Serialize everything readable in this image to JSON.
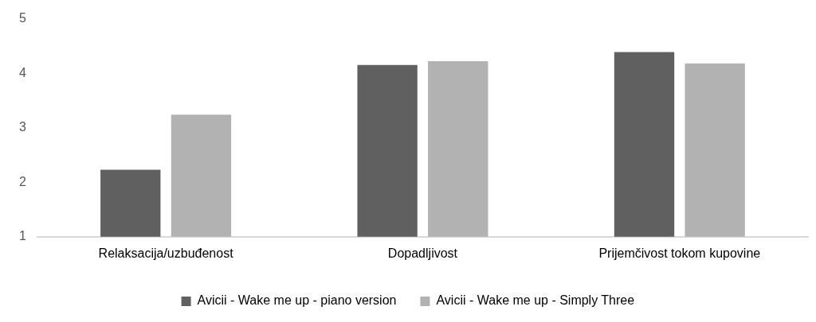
{
  "chart_data": {
    "type": "bar",
    "categories": [
      "Relaksacija/uzbuđenost",
      "Dopadljivost",
      "Prijemčivost tokom kupovine"
    ],
    "series": [
      {
        "name": "Avicii - Wake me up - piano version",
        "color": "#606060",
        "values": [
          2.23,
          4.15,
          4.39
        ]
      },
      {
        "name": "Avicii - Wake me up - Simply Three",
        "color": "#b2b2b2",
        "values": [
          3.24,
          4.22,
          4.18
        ]
      }
    ],
    "ylim": [
      1,
      5
    ],
    "yticks": [
      1,
      2,
      3,
      4,
      5
    ],
    "grid": false,
    "legend": "bottom"
  }
}
